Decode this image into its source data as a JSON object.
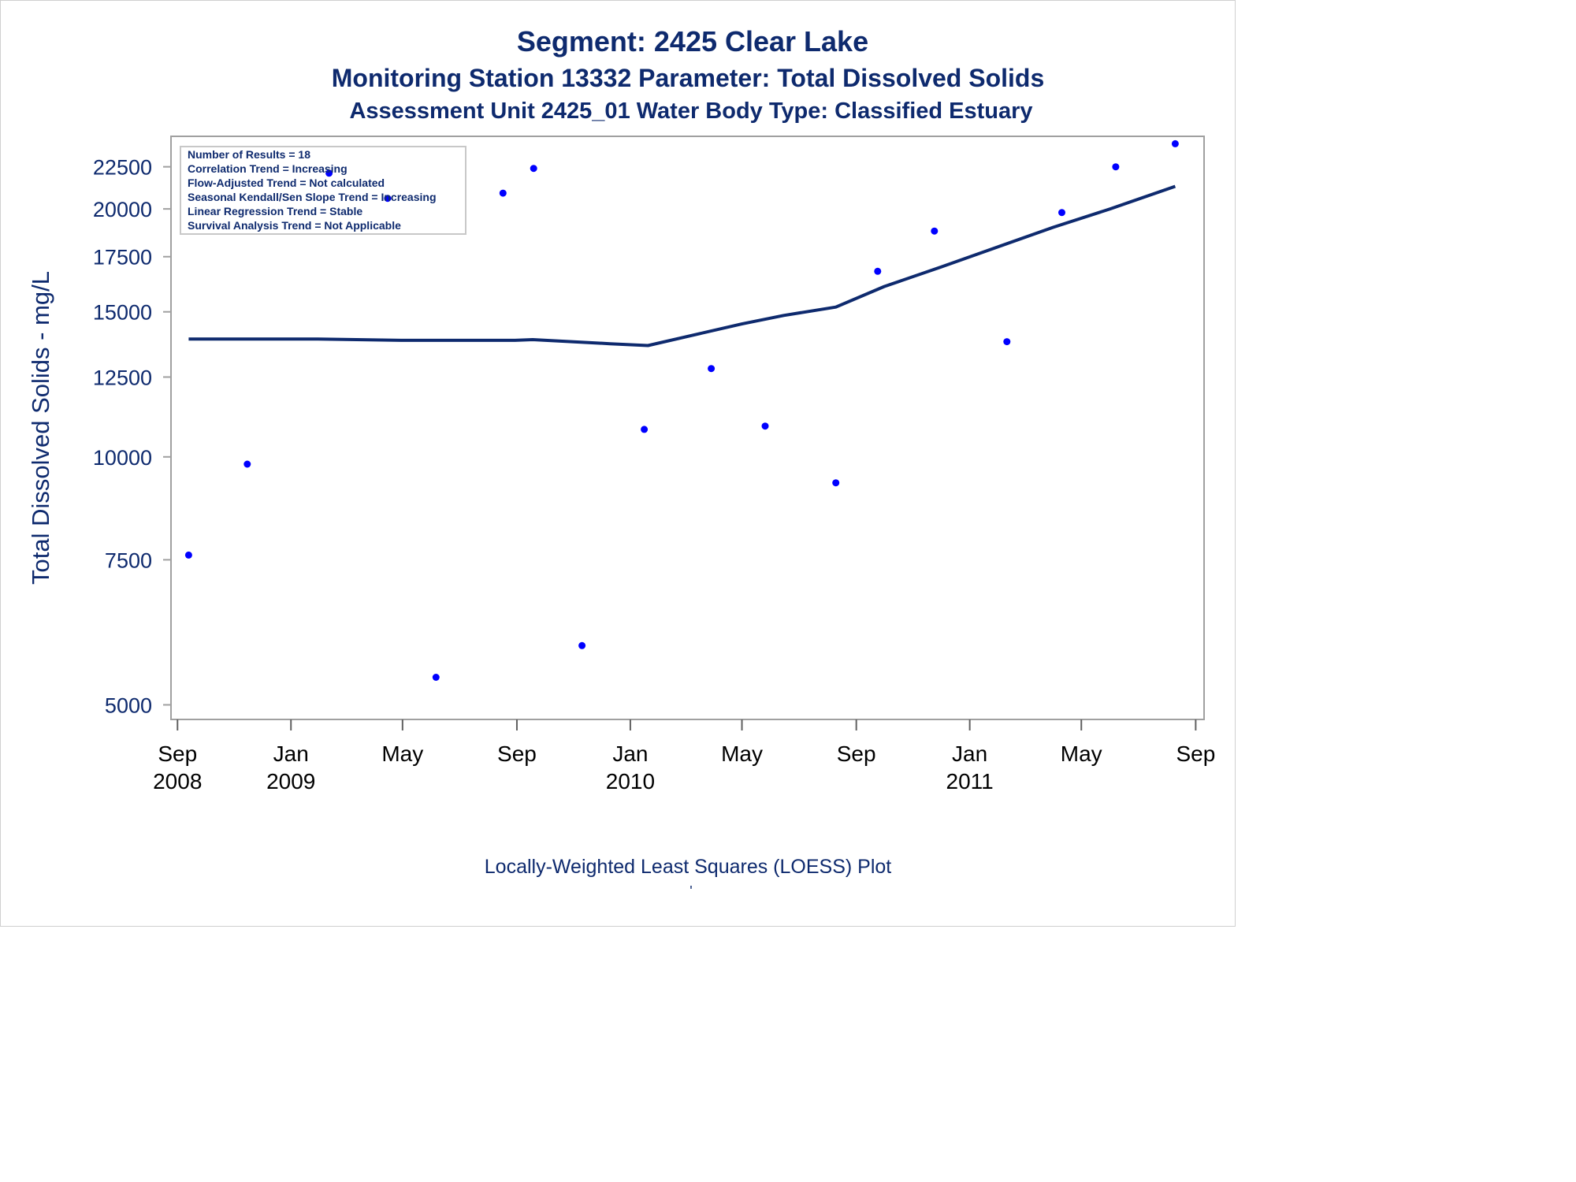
{
  "titles": {
    "line1": "Segment: 2425  Clear Lake",
    "line2": "Monitoring Station 13332 Parameter: Total Dissolved Solids",
    "line3": "Assessment Unit 2425_01   Water Body Type: Classified Estuary"
  },
  "footnote": "Locally-Weighted Least Squares (LOESS) Plot",
  "footnote_mark": "'",
  "stats_box": {
    "lines": [
      "Number of Results = 18",
      "Correlation Trend = Increasing",
      "Flow-Adjusted Trend = Not calculated",
      "Seasonal Kendall/Sen Slope Trend = Increasing",
      "Linear Regression Trend = Stable",
      "Survival Analysis Trend = Not Applicable"
    ]
  },
  "colors": {
    "axis_text": "#0e2a6e",
    "points": "#0000ff",
    "loess_line": "#0e2a6e",
    "frame": "#a0a0a0"
  },
  "chart_data": {
    "type": "scatter",
    "ylabel": "Total Dissolved Solids - mg/L",
    "xlabel": "",
    "y_scale": "log",
    "ylim": [
      4800,
      24500
    ],
    "xlim": [
      "2008-08-25",
      "2011-09-10"
    ],
    "y_ticks": [
      5000,
      7500,
      10000,
      12500,
      15000,
      17500,
      20000,
      22500
    ],
    "x_ticks": [
      {
        "date": "2008-09-01",
        "month": "Sep",
        "year": "2008"
      },
      {
        "date": "2009-01-01",
        "month": "Jan",
        "year": "2009"
      },
      {
        "date": "2009-05-01",
        "month": "May",
        "year": ""
      },
      {
        "date": "2009-09-01",
        "month": "Sep",
        "year": ""
      },
      {
        "date": "2010-01-01",
        "month": "Jan",
        "year": "2010"
      },
      {
        "date": "2010-05-01",
        "month": "May",
        "year": ""
      },
      {
        "date": "2010-09-01",
        "month": "Sep",
        "year": ""
      },
      {
        "date": "2011-01-01",
        "month": "Jan",
        "year": "2011"
      },
      {
        "date": "2011-05-01",
        "month": "May",
        "year": ""
      },
      {
        "date": "2011-09-01",
        "month": "Sep",
        "year": ""
      }
    ],
    "series": [
      {
        "kind": "points",
        "points": [
          {
            "x": "2008-09-13",
            "y": 7600
          },
          {
            "x": "2008-11-15",
            "y": 9800
          },
          {
            "x": "2009-02-11",
            "y": 22100
          },
          {
            "x": "2009-04-15",
            "y": 20600
          },
          {
            "x": "2009-06-06",
            "y": 5400
          },
          {
            "x": "2009-08-17",
            "y": 20900
          },
          {
            "x": "2009-09-19",
            "y": 22400
          },
          {
            "x": "2009-11-10",
            "y": 5900
          },
          {
            "x": "2010-01-16",
            "y": 10800
          },
          {
            "x": "2010-03-29",
            "y": 12800
          },
          {
            "x": "2010-05-26",
            "y": 10900
          },
          {
            "x": "2010-08-10",
            "y": 9300
          },
          {
            "x": "2010-09-24",
            "y": 16800
          },
          {
            "x": "2010-11-24",
            "y": 18800
          },
          {
            "x": "2011-02-10",
            "y": 13800
          },
          {
            "x": "2011-04-10",
            "y": 19800
          },
          {
            "x": "2011-06-07",
            "y": 22500
          },
          {
            "x": "2011-08-10",
            "y": 24000
          }
        ]
      },
      {
        "kind": "line",
        "points": [
          {
            "x": "2008-09-13",
            "y": 13900
          },
          {
            "x": "2009-01-30",
            "y": 13900
          },
          {
            "x": "2009-04-30",
            "y": 13850
          },
          {
            "x": "2009-08-30",
            "y": 13850
          },
          {
            "x": "2009-09-18",
            "y": 13880
          },
          {
            "x": "2009-10-30",
            "y": 13800
          },
          {
            "x": "2009-12-10",
            "y": 13720
          },
          {
            "x": "2010-01-20",
            "y": 13650
          },
          {
            "x": "2010-03-15",
            "y": 14100
          },
          {
            "x": "2010-05-01",
            "y": 14500
          },
          {
            "x": "2010-06-15",
            "y": 14850
          },
          {
            "x": "2010-08-10",
            "y": 15200
          },
          {
            "x": "2010-10-01",
            "y": 16100
          },
          {
            "x": "2010-12-01",
            "y": 17000
          },
          {
            "x": "2011-02-01",
            "y": 18000
          },
          {
            "x": "2011-04-01",
            "y": 19000
          },
          {
            "x": "2011-06-01",
            "y": 20000
          },
          {
            "x": "2011-08-10",
            "y": 21300
          }
        ]
      }
    ]
  }
}
